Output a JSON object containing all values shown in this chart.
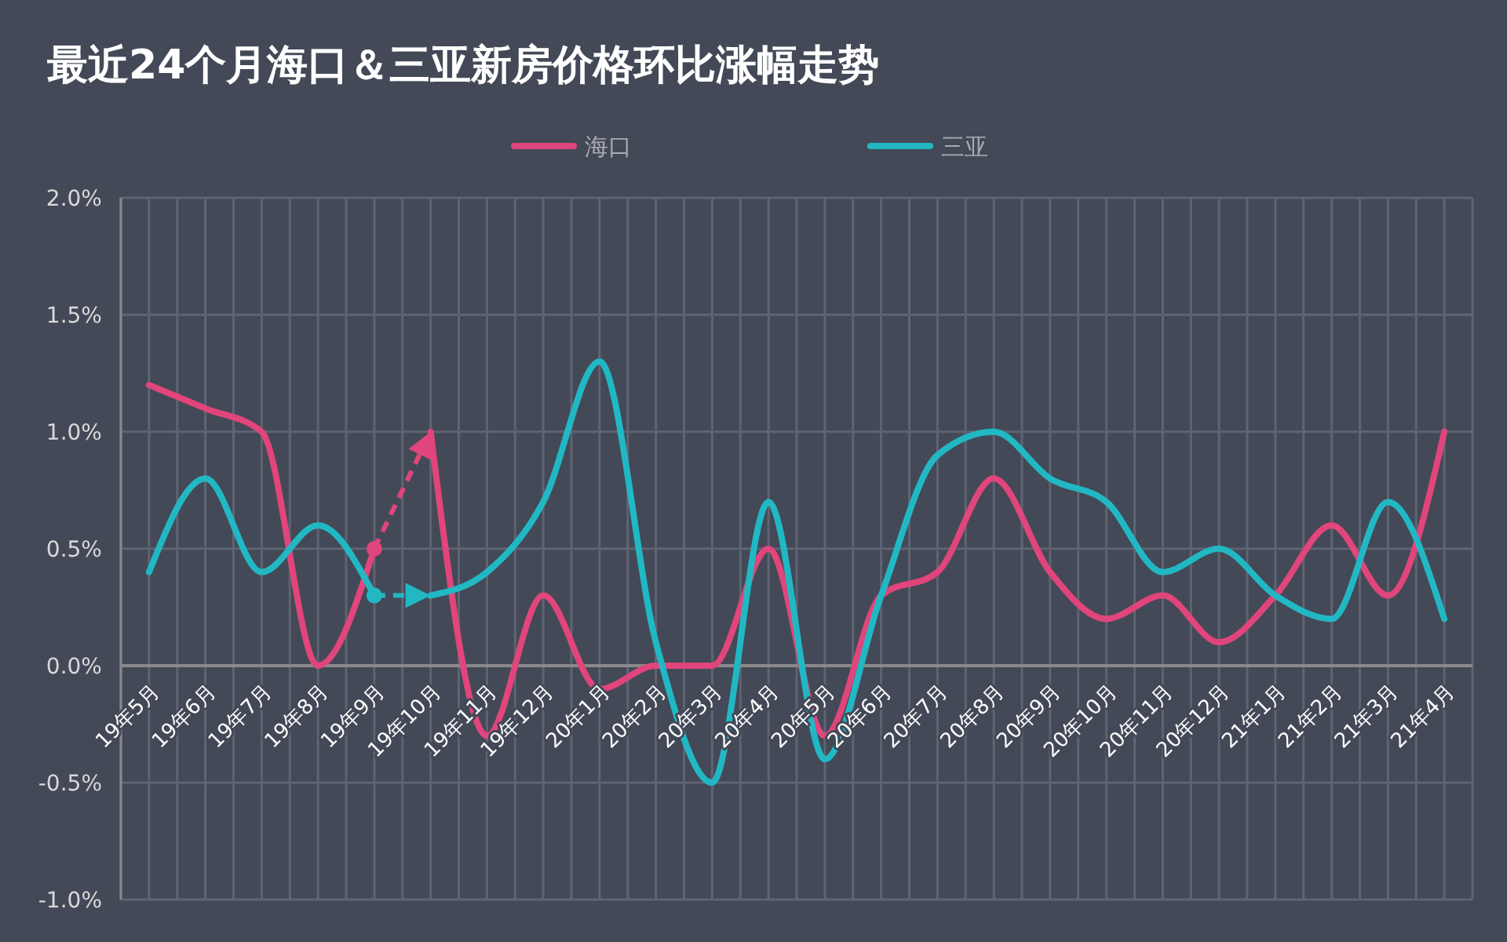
{
  "chart_data": {
    "type": "line",
    "title": "最近24个月海口＆三亚新房价格环比涨幅走势",
    "categories": [
      "19年5月",
      "19年6月",
      "19年7月",
      "19年8月",
      "19年9月",
      "19年10月",
      "19年11月",
      "19年12月",
      "20年1月",
      "20年2月",
      "20年3月",
      "20年4月",
      "20年5月",
      "20年6月",
      "20年7月",
      "20年8月",
      "20年9月",
      "20年10月",
      "20年11月",
      "20年12月",
      "21年1月",
      "21年2月",
      "21年3月",
      "21年4月"
    ],
    "series": [
      {
        "name": "海口",
        "color": "#e0457b",
        "values": [
          1.2,
          1.1,
          1.0,
          0.0,
          0.5,
          1.0,
          -0.3,
          0.3,
          -0.1,
          0.0,
          0.0,
          0.5,
          -0.3,
          0.3,
          0.4,
          0.8,
          0.4,
          0.2,
          0.3,
          0.1,
          0.3,
          0.6,
          0.3,
          1.0
        ]
      },
      {
        "name": "三亚",
        "color": "#21b8c4",
        "values": [
          0.4,
          0.8,
          0.4,
          0.6,
          0.3,
          0.3,
          0.4,
          0.7,
          1.3,
          0.1,
          -0.5,
          0.7,
          -0.4,
          0.3,
          0.9,
          1.0,
          0.8,
          0.7,
          0.4,
          0.5,
          0.3,
          0.2,
          0.7,
          0.2
        ]
      }
    ],
    "ylim": [
      -1,
      2
    ],
    "yticks": [
      {
        "value": -1,
        "label": "-1.0%"
      },
      {
        "value": -0.5,
        "label": "-0.5%"
      },
      {
        "value": 0,
        "label": "0.0%"
      },
      {
        "value": 0.5,
        "label": "0.5%"
      },
      {
        "value": 1,
        "label": "1.0%"
      },
      {
        "value": 1.5,
        "label": "1.5%"
      },
      {
        "value": 2,
        "label": "2.0%"
      }
    ],
    "grid": true,
    "legend": "top"
  }
}
